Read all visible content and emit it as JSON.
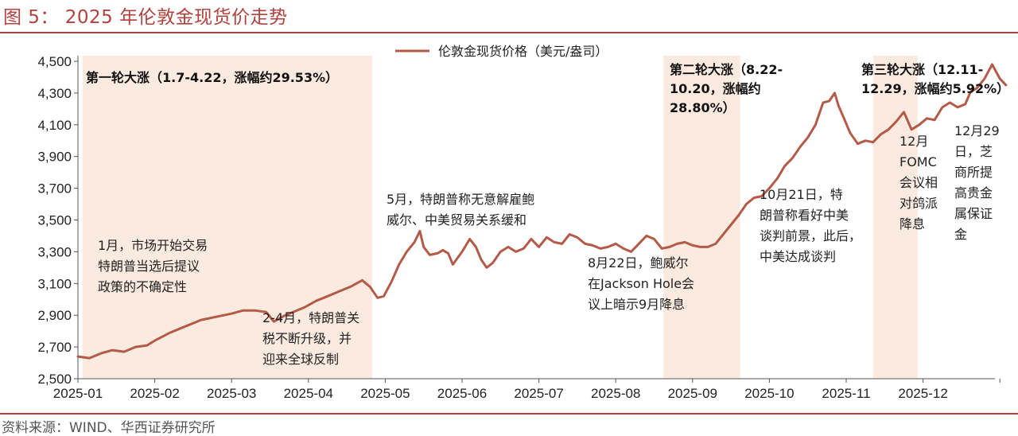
{
  "figure": {
    "title": "图 5：  2025 年伦敦金现货价走势",
    "source": "资料来源：WIND、华西证券研究所"
  },
  "colors": {
    "line": "#b45a48",
    "shade": "#fbeadf",
    "accent": "#b0413e",
    "axis": "#555555"
  },
  "chart_data": {
    "type": "line",
    "title": "",
    "xlabel": "",
    "ylabel": "",
    "ylim": [
      2500,
      4500
    ],
    "yticks": [
      "2,500",
      "2,700",
      "2,900",
      "3,100",
      "3,300",
      "3,500",
      "3,700",
      "3,900",
      "4,100",
      "4,300",
      "4,500"
    ],
    "xticks": [
      "2025-01",
      "2025-02",
      "2025-03",
      "2025-04",
      "2025-05",
      "2025-06",
      "2025-07",
      "2025-08",
      "2025-09",
      "2025-10",
      "2025-11",
      "2025-12"
    ],
    "legend": {
      "position": "top-center",
      "label": "伦敦金现货价格（美元/盎司）"
    },
    "series": [
      {
        "name": "伦敦金现货价格（美元/盎司）",
        "points": [
          [
            0.0,
            2640
          ],
          [
            0.15,
            2630
          ],
          [
            0.3,
            2660
          ],
          [
            0.45,
            2680
          ],
          [
            0.6,
            2670
          ],
          [
            0.75,
            2700
          ],
          [
            0.9,
            2710
          ],
          [
            1.0,
            2740
          ],
          [
            1.2,
            2790
          ],
          [
            1.4,
            2830
          ],
          [
            1.6,
            2870
          ],
          [
            1.8,
            2890
          ],
          [
            2.0,
            2910
          ],
          [
            2.15,
            2930
          ],
          [
            2.3,
            2930
          ],
          [
            2.45,
            2920
          ],
          [
            2.55,
            2860
          ],
          [
            2.7,
            2900
          ],
          [
            2.85,
            2930
          ],
          [
            2.95,
            2950
          ],
          [
            3.1,
            2990
          ],
          [
            3.25,
            3020
          ],
          [
            3.4,
            3050
          ],
          [
            3.55,
            3080
          ],
          [
            3.7,
            3120
          ],
          [
            3.8,
            3080
          ],
          [
            3.9,
            3010
          ],
          [
            3.98,
            3020
          ],
          [
            4.08,
            3110
          ],
          [
            4.18,
            3220
          ],
          [
            4.28,
            3300
          ],
          [
            4.38,
            3360
          ],
          [
            4.45,
            3430
          ],
          [
            4.5,
            3330
          ],
          [
            4.58,
            3280
          ],
          [
            4.68,
            3290
          ],
          [
            4.75,
            3310
          ],
          [
            4.82,
            3290
          ],
          [
            4.88,
            3220
          ],
          [
            5.0,
            3300
          ],
          [
            5.1,
            3380
          ],
          [
            5.18,
            3330
          ],
          [
            5.25,
            3250
          ],
          [
            5.32,
            3200
          ],
          [
            5.4,
            3230
          ],
          [
            5.5,
            3300
          ],
          [
            5.6,
            3330
          ],
          [
            5.7,
            3300
          ],
          [
            5.8,
            3320
          ],
          [
            5.9,
            3380
          ],
          [
            6.0,
            3330
          ],
          [
            6.1,
            3390
          ],
          [
            6.2,
            3360
          ],
          [
            6.3,
            3350
          ],
          [
            6.4,
            3410
          ],
          [
            6.5,
            3390
          ],
          [
            6.6,
            3350
          ],
          [
            6.7,
            3340
          ],
          [
            6.8,
            3320
          ],
          [
            6.9,
            3330
          ],
          [
            7.0,
            3350
          ],
          [
            7.1,
            3320
          ],
          [
            7.2,
            3300
          ],
          [
            7.3,
            3350
          ],
          [
            7.4,
            3400
          ],
          [
            7.5,
            3380
          ],
          [
            7.6,
            3320
          ],
          [
            7.7,
            3330
          ],
          [
            7.8,
            3350
          ],
          [
            7.9,
            3360
          ],
          [
            8.0,
            3340
          ],
          [
            8.1,
            3330
          ],
          [
            8.2,
            3330
          ],
          [
            8.3,
            3350
          ],
          [
            8.4,
            3410
          ],
          [
            8.5,
            3470
          ],
          [
            8.6,
            3530
          ],
          [
            8.7,
            3600
          ],
          [
            8.8,
            3640
          ],
          [
            8.9,
            3650
          ],
          [
            9.0,
            3700
          ],
          [
            9.1,
            3760
          ],
          [
            9.2,
            3840
          ],
          [
            9.3,
            3890
          ],
          [
            9.4,
            3960
          ],
          [
            9.5,
            4020
          ],
          [
            9.6,
            4100
          ],
          [
            9.7,
            4240
          ],
          [
            9.78,
            4250
          ],
          [
            9.85,
            4300
          ],
          [
            9.9,
            4220
          ],
          [
            9.98,
            4130
          ],
          [
            10.05,
            4050
          ],
          [
            10.15,
            3980
          ],
          [
            10.25,
            4000
          ],
          [
            10.35,
            3990
          ],
          [
            10.45,
            4040
          ],
          [
            10.55,
            4070
          ],
          [
            10.65,
            4120
          ],
          [
            10.75,
            4180
          ],
          [
            10.85,
            4070
          ],
          [
            10.95,
            4100
          ],
          [
            11.05,
            4140
          ],
          [
            11.15,
            4130
          ],
          [
            11.25,
            4210
          ],
          [
            11.35,
            4240
          ],
          [
            11.45,
            4210
          ],
          [
            11.55,
            4230
          ],
          [
            11.62,
            4310
          ],
          [
            11.7,
            4330
          ],
          [
            11.8,
            4390
          ],
          [
            11.9,
            4480
          ],
          [
            12.0,
            4390
          ],
          [
            12.08,
            4350
          ]
        ]
      }
    ],
    "phases": [
      {
        "start": 0.06,
        "end": 3.83,
        "label_lines": [
          "第一轮大涨（1.7-4.22，涨幅约29.53%）"
        ]
      },
      {
        "start": 7.62,
        "end": 8.62,
        "label_lines": [
          "第二轮大涨（8.22-",
          "10.20，涨幅约",
          "28.80%）"
        ]
      },
      {
        "start": 10.35,
        "end": 10.93,
        "label_lines": [
          "第三轮大涨（12.11-",
          "12.29，涨幅约5.92%）"
        ]
      }
    ],
    "annotations": [
      {
        "lines": [
          "1月，市场开始交易",
          "特朗普当选后提议",
          "政策的不确定性"
        ]
      },
      {
        "lines": [
          "2-4月，特朗普关",
          "税不断升级，并",
          "迎来全球反制"
        ]
      },
      {
        "lines": [
          "5月，特朗普称无意解雇鲍",
          "威尔、中美贸易关系缓和"
        ]
      },
      {
        "lines": [
          "8月22日，鲍威尔",
          "在Jackson Hole会",
          "议上暗示9月降息"
        ]
      },
      {
        "lines": [
          "10月21日，特",
          "朗普称看好中美",
          "谈判前景，此后，",
          "中美达成谈判"
        ]
      },
      {
        "lines": [
          "12月",
          "FOMC",
          "会议相",
          "对鸽派",
          "降息"
        ]
      },
      {
        "lines": [
          "12月29",
          "日，芝",
          "商所提",
          "高贵金",
          "属保证",
          "金"
        ]
      }
    ]
  }
}
